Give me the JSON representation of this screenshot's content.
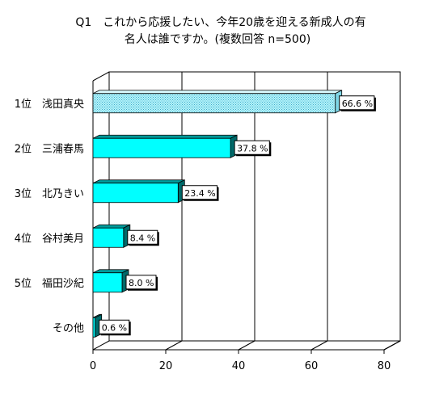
{
  "chart_data": {
    "type": "bar",
    "orientation": "horizontal",
    "title_lines": [
      "Q1　これから応援したい、今年20歳を迎える新成人の有",
      "名人は誰ですか。(複数回答 n=500)"
    ],
    "categories": [
      "1位　浅田真央",
      "2位　三浦春馬",
      "3位　北乃きい",
      "4位　谷村美月",
      "5位　福田沙紀",
      "その他"
    ],
    "values": [
      66.6,
      37.8,
      23.4,
      8.4,
      8.0,
      0.6
    ],
    "value_labels": [
      "66.6 %",
      "37.8 %",
      "23.4 %",
      "8.4 %",
      "8.0 %",
      "0.6 %"
    ],
    "highlight_index": 0,
    "xlim": [
      0,
      80
    ],
    "xticks": [
      0,
      20,
      40,
      60,
      80
    ],
    "xtick_labels": [
      "0",
      "20",
      "40",
      "60",
      "80"
    ],
    "grid": true,
    "colors": {
      "bar_front": "#00ffff",
      "bar_top": "#009b9b",
      "bar_side": "#006a6a",
      "highlight_fill": "#b3f4fb",
      "highlight_dots": "#3fa8c8",
      "back_wall": "#ffffff",
      "axis": "#000000"
    }
  }
}
